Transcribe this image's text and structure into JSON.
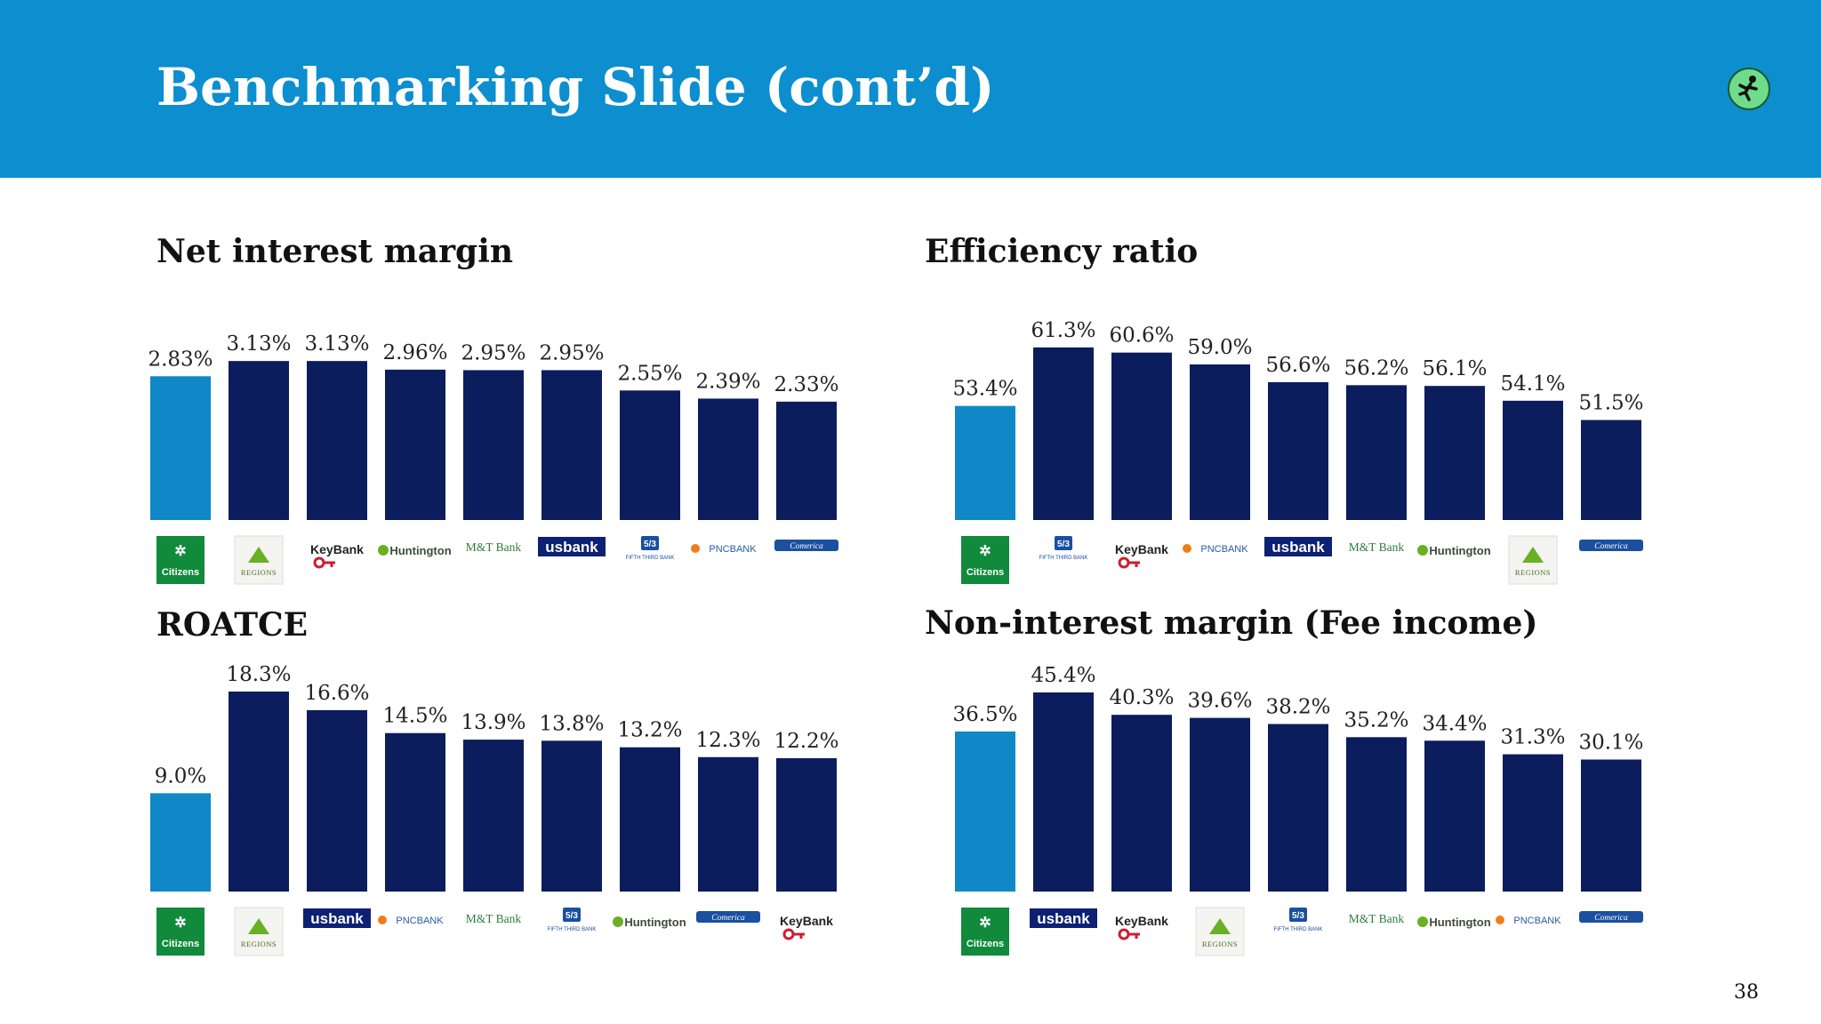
{
  "header": {
    "title": "Benchmarking Slide (cont’d)",
    "logo_icon": "runner-logo-icon"
  },
  "colors": {
    "header_bg": "#0d8ecf",
    "citizens_bar": "#1088c8",
    "peer_bar": "#0b1d5c"
  },
  "chart_data": [
    {
      "type": "bar",
      "title": "Net interest margin",
      "categories": [
        "Citizens",
        "Regions",
        "KeyBank",
        "Huntington",
        "M&T Bank",
        "usbank",
        "Fifth Third Bank",
        "PNC Bank",
        "Comerica"
      ],
      "values": [
        2.83,
        3.13,
        3.13,
        2.96,
        2.95,
        2.95,
        2.55,
        2.39,
        2.33
      ],
      "labels": [
        "2.83%",
        "3.13%",
        "3.13%",
        "2.96%",
        "2.95%",
        "2.95%",
        "2.55%",
        "2.39%",
        "2.33%"
      ],
      "highlight_index": 0,
      "ylim": [
        0,
        3.5
      ]
    },
    {
      "type": "bar",
      "title": "Efficiency ratio",
      "categories": [
        "Citizens",
        "Fifth Third Bank",
        "KeyBank",
        "PNC Bank",
        "usbank",
        "M&T Bank",
        "Huntington",
        "Regions",
        "Comerica"
      ],
      "values": [
        53.4,
        61.3,
        60.6,
        59.0,
        56.6,
        56.2,
        56.1,
        54.1,
        51.5
      ],
      "labels": [
        "53.4%",
        "61.3%",
        "60.6%",
        "59.0%",
        "56.6%",
        "56.2%",
        "56.1%",
        "54.1%",
        "51.5%"
      ],
      "highlight_index": 0,
      "ylim": [
        38,
        62
      ]
    },
    {
      "type": "bar",
      "title": "ROATCE",
      "categories": [
        "Citizens",
        "Regions",
        "usbank",
        "PNC Bank",
        "M&T Bank",
        "Fifth Third Bank",
        "Huntington",
        "Comerica",
        "KeyBank"
      ],
      "values": [
        9.0,
        18.3,
        16.6,
        14.5,
        13.9,
        13.8,
        13.2,
        12.3,
        12.2
      ],
      "labels": [
        "9.0%",
        "18.3%",
        "16.6%",
        "14.5%",
        "13.9%",
        "13.8%",
        "13.2%",
        "12.3%",
        "12.2%"
      ],
      "highlight_index": 0,
      "ylim": [
        0,
        18.3
      ]
    },
    {
      "type": "bar",
      "title": "Non-interest margin (Fee income)",
      "categories": [
        "Citizens",
        "usbank",
        "KeyBank",
        "Regions",
        "Fifth Third Bank",
        "M&T Bank",
        "Huntington",
        "PNC Bank",
        "Comerica"
      ],
      "values": [
        36.5,
        45.4,
        40.3,
        39.6,
        38.2,
        35.2,
        34.4,
        31.3,
        30.1
      ],
      "labels": [
        "36.5%",
        "45.4%",
        "40.3%",
        "39.6%",
        "38.2%",
        "35.2%",
        "34.4%",
        "31.3%",
        "30.1%"
      ],
      "highlight_index": 0,
      "ylim": [
        0,
        45.4
      ]
    }
  ],
  "logos": {
    "Citizens": {
      "text": "Citizens",
      "kind": "citizens"
    },
    "Regions": {
      "text": "REGIONS",
      "kind": "regions"
    },
    "KeyBank": {
      "text": "KeyBank",
      "kind": "keybank"
    },
    "Huntington": {
      "text": "Huntington",
      "kind": "huntington"
    },
    "M&T Bank": {
      "text": "M&T Bank",
      "kind": "mt"
    },
    "usbank": {
      "text": "usbank",
      "kind": "usbank"
    },
    "Fifth Third Bank": {
      "text": "FIFTH THIRD BANK",
      "kind": "fifththird"
    },
    "PNC Bank": {
      "text": "PNCBANK",
      "kind": "pnc"
    },
    "Comerica": {
      "text": "Comerica",
      "kind": "comerica"
    }
  },
  "page_number": "38"
}
